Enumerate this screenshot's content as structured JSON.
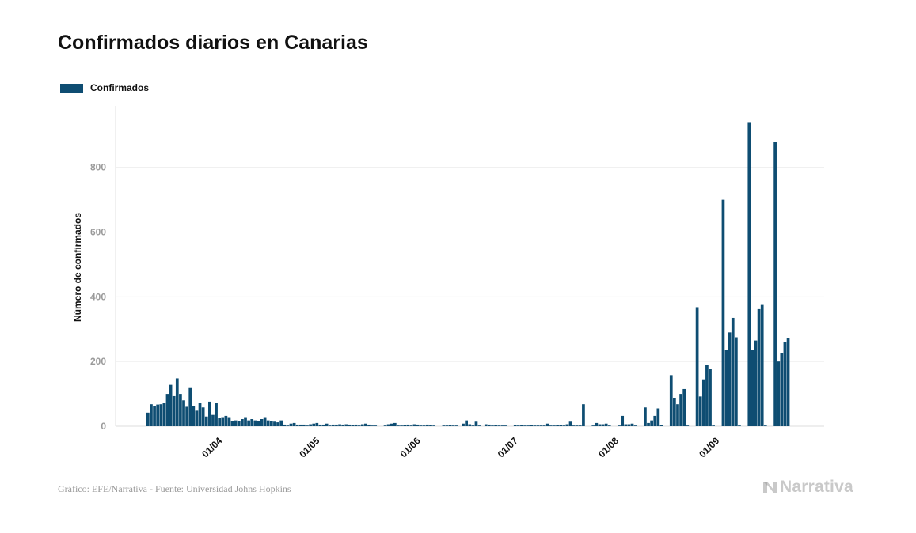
{
  "title": "Confirmados diarios en Canarias",
  "legend": {
    "label": "Confirmados",
    "color": "#0e4d72"
  },
  "footer": {
    "source": "Gráfico: EFE/Narrativa - Fuente: Universidad Johns Hopkins"
  },
  "brand": {
    "name": "Narrativa",
    "icon": "narrativa-logo-icon"
  },
  "colors": {
    "bar": "#0e4d72",
    "grid": "#ececec",
    "tick": "#9a9a9a"
  },
  "chart_data": {
    "type": "bar",
    "title": "Confirmados diarios en Canarias",
    "xlabel": "",
    "ylabel": "Número de confirmados",
    "ylim": [
      0,
      990
    ],
    "yticks": [
      0,
      200,
      400,
      600,
      800
    ],
    "grid": true,
    "legend_position": "top-left",
    "start_date": "2020-03-12",
    "xtick_labels": [
      "01/04",
      "01/05",
      "01/06",
      "01/07",
      "01/08",
      "01/09"
    ],
    "series": [
      {
        "name": "Confirmados",
        "values": [
          42,
          68,
          63,
          67,
          68,
          72,
          100,
          128,
          93,
          148,
          100,
          80,
          60,
          118,
          62,
          48,
          72,
          58,
          30,
          76,
          35,
          72,
          25,
          28,
          32,
          28,
          15,
          18,
          15,
          22,
          28,
          18,
          22,
          18,
          15,
          22,
          28,
          18,
          15,
          14,
          12,
          18,
          5,
          2,
          8,
          10,
          5,
          5,
          5,
          2,
          6,
          8,
          10,
          5,
          5,
          8,
          2,
          5,
          5,
          6,
          5,
          6,
          5,
          4,
          5,
          2,
          6,
          8,
          5,
          2,
          2,
          0,
          0,
          2,
          6,
          8,
          10,
          2,
          2,
          3,
          5,
          2,
          6,
          5,
          2,
          2,
          5,
          3,
          2,
          0,
          0,
          2,
          2,
          4,
          2,
          2,
          0,
          8,
          18,
          6,
          2,
          14,
          2,
          0,
          6,
          5,
          2,
          4,
          2,
          2,
          2,
          0,
          0,
          4,
          2,
          4,
          2,
          2,
          4,
          2,
          2,
          2,
          2,
          8,
          2,
          2,
          4,
          4,
          2,
          6,
          14,
          2,
          2,
          2,
          68,
          0,
          0,
          2,
          10,
          6,
          6,
          8,
          2,
          0,
          0,
          2,
          32,
          6,
          6,
          8,
          2,
          0,
          0,
          58,
          10,
          18,
          32,
          55,
          4,
          0,
          0,
          158,
          88,
          68,
          100,
          115,
          2,
          0,
          0,
          368,
          92,
          145,
          190,
          178,
          2,
          0,
          0,
          700,
          235,
          290,
          335,
          275,
          2,
          0,
          0,
          940,
          235,
          265,
          362,
          375,
          2,
          0,
          0,
          880,
          200,
          225,
          260,
          272
        ]
      }
    ]
  }
}
